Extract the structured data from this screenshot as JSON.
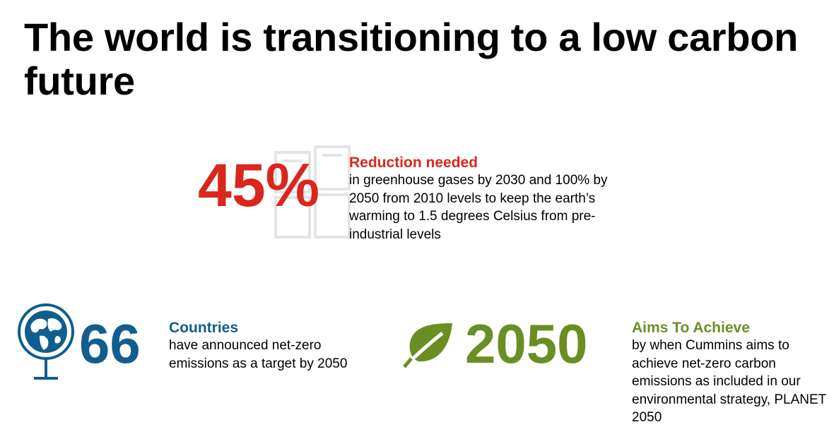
{
  "colors": {
    "red": "#d9271e",
    "blue": "#0f5e8e",
    "green": "#6b8e23",
    "watermark": "#e4e4e4"
  },
  "title": "The world is transitioning to a low carbon future",
  "stats": [
    {
      "value": "45%",
      "heading": "Reduction needed",
      "body": "in greenhouse gases by 2030 and 100% by 2050 from 2010 levels to keep the earth’s warming to 1.5 degrees Celsius from pre-industrial levels",
      "icon": "window-watermark-icon"
    },
    {
      "value": "66",
      "heading": "Countries",
      "body": "have announced net-zero emissions as a target by 2050",
      "icon": "globe-icon"
    },
    {
      "value": "2050",
      "heading": "Aims To Achieve",
      "body": "by when Cummins aims to achieve net-zero carbon emissions as included in our environmental strategy, PLANET 2050",
      "icon": "leaf-icon"
    }
  ]
}
